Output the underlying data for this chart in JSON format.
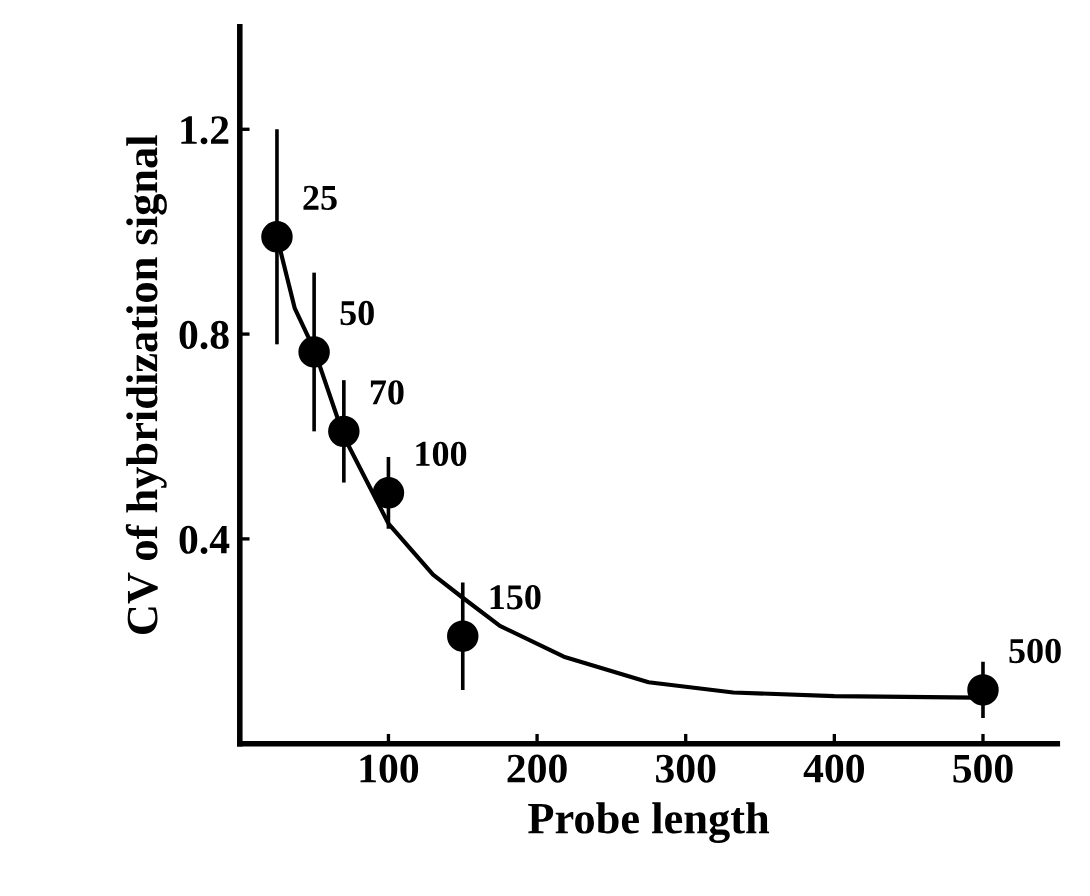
{
  "chart_data": {
    "type": "scatter",
    "xlabel": "Probe length",
    "ylabel": "CV of hybridization signal",
    "xlim": [
      0,
      550
    ],
    "xticks": [
      100,
      200,
      300,
      400,
      500
    ],
    "ylim": [
      0,
      1.4
    ],
    "yticks": [
      0.4,
      0.8,
      1.2
    ],
    "grid": false,
    "marker": "circle",
    "series": [
      {
        "color": "#000000",
        "x": [
          25,
          50,
          70,
          100,
          150,
          500
        ],
        "values": [
          0.99,
          0.765,
          0.61,
          0.49,
          0.21,
          0.105
        ],
        "errors": [
          0.21,
          0.155,
          0.1,
          0.07,
          0.105,
          0.055
        ]
      },
      {
        "type": "line",
        "color": "#000000",
        "line_style": "solid",
        "marker": "none",
        "x": [
          25,
          37,
          50,
          70,
          100,
          130,
          150,
          175,
          218,
          275,
          332,
          400,
          495
        ],
        "values": [
          0.99,
          0.85,
          0.77,
          0.6,
          0.43,
          0.33,
          0.285,
          0.23,
          0.17,
          0.12,
          0.1,
          0.093,
          0.09
        ]
      }
    ],
    "annotations": [
      {
        "text": "25",
        "x": 25,
        "y": 0.99
      },
      {
        "text": "50",
        "x": 50,
        "y": 0.765
      },
      {
        "text": "70",
        "x": 70,
        "y": 0.61
      },
      {
        "text": "100",
        "x": 100,
        "y": 0.49
      },
      {
        "text": "150",
        "x": 150,
        "y": 0.21
      },
      {
        "text": "500",
        "x": 500,
        "y": 0.105
      }
    ]
  }
}
